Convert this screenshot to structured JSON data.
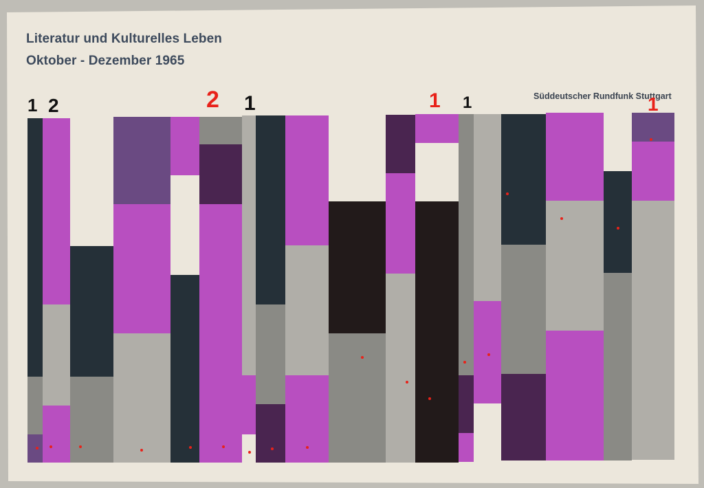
{
  "cover": {
    "title_line1": "Literatur und Kulturelles Leben",
    "title_line2": "Oktober - Dezember 1965",
    "publisher": "Süddeutscher Rundfunk Stuttgart"
  },
  "handwritten_marks": [
    {
      "text": "1",
      "color": "black"
    },
    {
      "text": "2",
      "color": "black"
    },
    {
      "text": "2",
      "color": "red"
    },
    {
      "text": "1",
      "color": "black"
    },
    {
      "text": "1",
      "color": "red"
    },
    {
      "text": "1",
      "color": "black"
    },
    {
      "text": "1",
      "color": "red"
    }
  ],
  "colors": {
    "paper": "#ece7dc",
    "magenta": "#b84fc0",
    "dark_purple": "#4a2550",
    "mid_purple": "#6a4a82",
    "charcoal": "#253038",
    "black": "#221a1a",
    "gray": "#8a8a85",
    "light_gray": "#b0aea8",
    "red_dot": "#e8221a"
  }
}
